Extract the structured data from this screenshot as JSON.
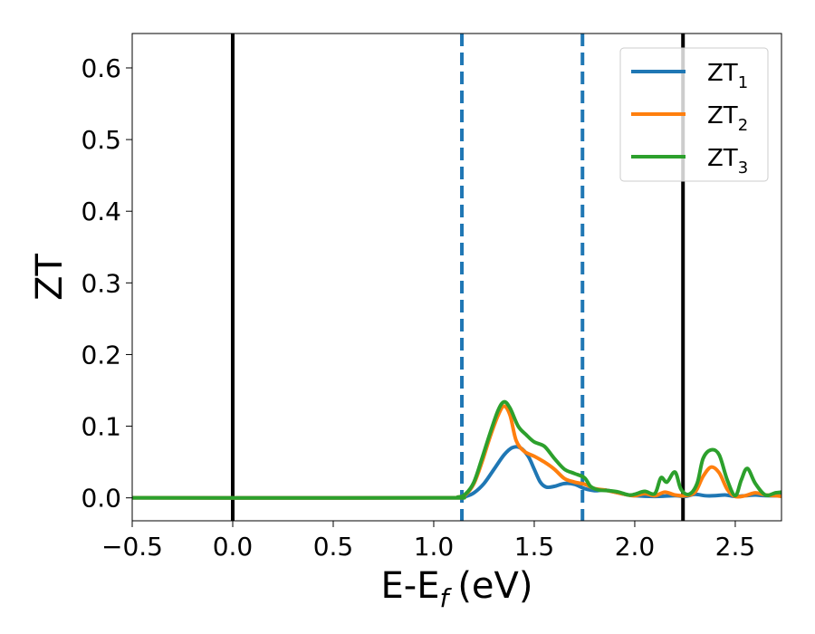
{
  "chart_data": {
    "type": "line",
    "xlabel": "E-E",
    "xlabel_sub": "f",
    "xlabel_unit": "(eV)",
    "ylabel": "ZT",
    "xlim": [
      -0.5,
      2.73
    ],
    "ylim": [
      -0.032,
      0.648
    ],
    "x_ticks": [
      -0.5,
      0.0,
      0.5,
      1.0,
      1.5,
      2.0,
      2.5
    ],
    "x_tick_labels": [
      "−0.5",
      "0.0",
      "0.5",
      "1.0",
      "1.5",
      "2.0",
      "2.5"
    ],
    "y_ticks": [
      0.0,
      0.1,
      0.2,
      0.3,
      0.4,
      0.5,
      0.6
    ],
    "y_tick_labels": [
      "0.0",
      "0.1",
      "0.2",
      "0.3",
      "0.4",
      "0.5",
      "0.6"
    ],
    "grid": false,
    "legend_position": "upper right",
    "vlines": [
      {
        "x": 0.0,
        "style": "solid",
        "color": "#000000"
      },
      {
        "x": 2.24,
        "style": "solid",
        "color": "#000000"
      },
      {
        "x": 1.14,
        "style": "dashed",
        "color": "#1f77b4"
      },
      {
        "x": 1.74,
        "style": "dashed",
        "color": "#1f77b4"
      }
    ],
    "series": [
      {
        "name": "ZT",
        "subscript": "1",
        "color": "#1f77b4",
        "points": [
          [
            -0.5,
            0
          ],
          [
            1.0,
            0
          ],
          [
            1.12,
            0.0005
          ],
          [
            1.16,
            0.002
          ],
          [
            1.2,
            0.007
          ],
          [
            1.25,
            0.02
          ],
          [
            1.3,
            0.04
          ],
          [
            1.35,
            0.06
          ],
          [
            1.39,
            0.07
          ],
          [
            1.43,
            0.07
          ],
          [
            1.47,
            0.058
          ],
          [
            1.5,
            0.04
          ],
          [
            1.53,
            0.022
          ],
          [
            1.56,
            0.015
          ],
          [
            1.6,
            0.016
          ],
          [
            1.65,
            0.02
          ],
          [
            1.7,
            0.019
          ],
          [
            1.75,
            0.013
          ],
          [
            1.8,
            0.01
          ],
          [
            1.85,
            0.011
          ],
          [
            1.9,
            0.008
          ],
          [
            1.95,
            0.005
          ],
          [
            2.0,
            0.003
          ],
          [
            2.1,
            0.002
          ],
          [
            2.2,
            0.003
          ],
          [
            2.25,
            0.002
          ],
          [
            2.3,
            0.005
          ],
          [
            2.35,
            0.003
          ],
          [
            2.4,
            0.003
          ],
          [
            2.45,
            0.004
          ],
          [
            2.5,
            0.002
          ],
          [
            2.55,
            0.003
          ],
          [
            2.6,
            0.004
          ],
          [
            2.65,
            0.003
          ],
          [
            2.73,
            0.003
          ]
        ]
      },
      {
        "name": "ZT",
        "subscript": "2",
        "color": "#ff7f0e",
        "points": [
          [
            -0.5,
            0
          ],
          [
            1.0,
            0
          ],
          [
            1.12,
            0.001
          ],
          [
            1.16,
            0.005
          ],
          [
            1.2,
            0.02
          ],
          [
            1.24,
            0.05
          ],
          [
            1.28,
            0.085
          ],
          [
            1.32,
            0.115
          ],
          [
            1.35,
            0.128
          ],
          [
            1.38,
            0.115
          ],
          [
            1.41,
            0.08
          ],
          [
            1.45,
            0.065
          ],
          [
            1.5,
            0.058
          ],
          [
            1.55,
            0.05
          ],
          [
            1.6,
            0.04
          ],
          [
            1.65,
            0.027
          ],
          [
            1.7,
            0.022
          ],
          [
            1.75,
            0.019
          ],
          [
            1.8,
            0.013
          ],
          [
            1.85,
            0.011
          ],
          [
            1.9,
            0.008
          ],
          [
            1.95,
            0.005
          ],
          [
            2.0,
            0.003
          ],
          [
            2.05,
            0.006
          ],
          [
            2.1,
            0.003
          ],
          [
            2.15,
            0.008
          ],
          [
            2.2,
            0.004
          ],
          [
            2.25,
            0.003
          ],
          [
            2.3,
            0.008
          ],
          [
            2.34,
            0.03
          ],
          [
            2.38,
            0.043
          ],
          [
            2.42,
            0.035
          ],
          [
            2.46,
            0.012
          ],
          [
            2.5,
            0.002
          ],
          [
            2.55,
            0.003
          ],
          [
            2.6,
            0.007
          ],
          [
            2.65,
            0.004
          ],
          [
            2.7,
            0.003
          ],
          [
            2.73,
            0.002
          ]
        ]
      },
      {
        "name": "ZT",
        "subscript": "3",
        "color": "#2ca02c",
        "points": [
          [
            -0.5,
            0
          ],
          [
            1.0,
            0
          ],
          [
            1.12,
            0.001
          ],
          [
            1.16,
            0.006
          ],
          [
            1.2,
            0.022
          ],
          [
            1.24,
            0.055
          ],
          [
            1.28,
            0.09
          ],
          [
            1.32,
            0.122
          ],
          [
            1.35,
            0.134
          ],
          [
            1.38,
            0.125
          ],
          [
            1.42,
            0.1
          ],
          [
            1.46,
            0.088
          ],
          [
            1.5,
            0.078
          ],
          [
            1.55,
            0.072
          ],
          [
            1.6,
            0.055
          ],
          [
            1.65,
            0.04
          ],
          [
            1.7,
            0.034
          ],
          [
            1.75,
            0.028
          ],
          [
            1.78,
            0.016
          ],
          [
            1.82,
            0.011
          ],
          [
            1.87,
            0.01
          ],
          [
            1.92,
            0.008
          ],
          [
            1.97,
            0.004
          ],
          [
            2.0,
            0.005
          ],
          [
            2.05,
            0.009
          ],
          [
            2.1,
            0.006
          ],
          [
            2.13,
            0.028
          ],
          [
            2.16,
            0.022
          ],
          [
            2.2,
            0.036
          ],
          [
            2.23,
            0.012
          ],
          [
            2.27,
            0.005
          ],
          [
            2.31,
            0.02
          ],
          [
            2.34,
            0.055
          ],
          [
            2.38,
            0.067
          ],
          [
            2.42,
            0.06
          ],
          [
            2.46,
            0.025
          ],
          [
            2.5,
            0.003
          ],
          [
            2.53,
            0.025
          ],
          [
            2.56,
            0.041
          ],
          [
            2.6,
            0.02
          ],
          [
            2.65,
            0.004
          ],
          [
            2.7,
            0.007
          ],
          [
            2.73,
            0.008
          ]
        ]
      }
    ]
  }
}
